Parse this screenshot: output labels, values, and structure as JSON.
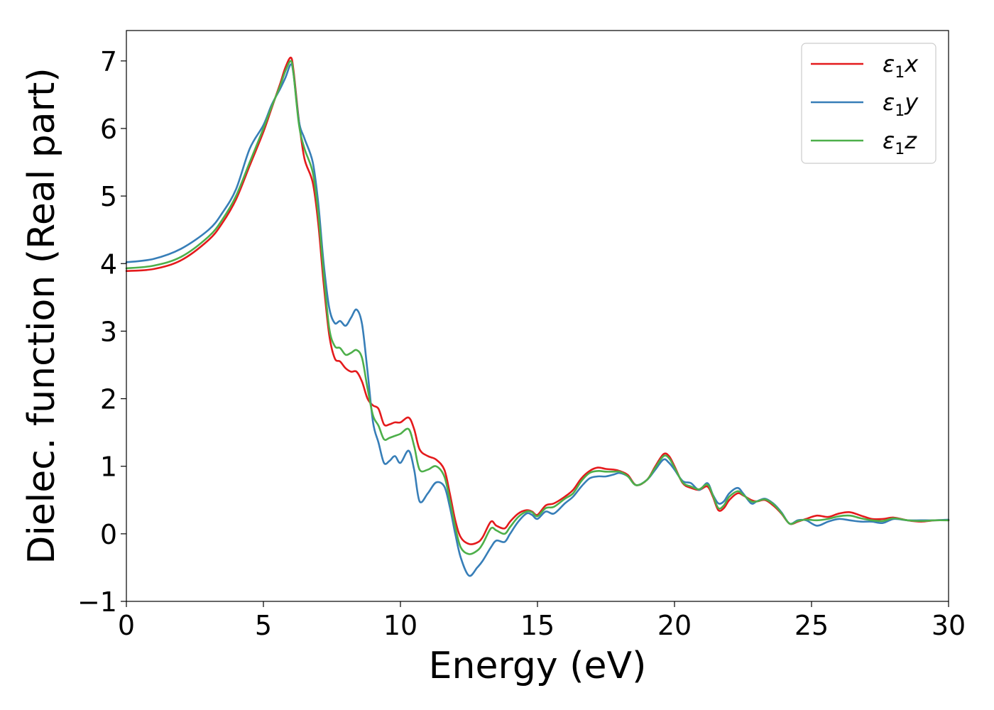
{
  "chart_data": {
    "type": "line",
    "xlabel": "Energy (eV)",
    "ylabel": "Dielec. function (Real part)",
    "xlim": [
      0,
      30
    ],
    "ylim": [
      -1,
      7.45
    ],
    "xticks": [
      0,
      5,
      10,
      15,
      20,
      25,
      30
    ],
    "yticks": [
      -1,
      0,
      1,
      2,
      3,
      4,
      5,
      6,
      7
    ],
    "xtick_labels": [
      "0",
      "5",
      "10",
      "15",
      "20",
      "25",
      "30"
    ],
    "ytick_labels": [
      "−1",
      "0",
      "1",
      "2",
      "3",
      "4",
      "5",
      "6",
      "7"
    ],
    "grid": false,
    "legend_position": "top-right",
    "series": [
      {
        "name": "ε₁x",
        "legend_main": "ε",
        "legend_sub": "1",
        "legend_tail": "x",
        "color": "#e41a1c",
        "x": [
          0,
          1,
          2,
          3,
          3.5,
          4,
          4.5,
          5,
          5.3,
          5.6,
          5.8,
          6.0,
          6.1,
          6.3,
          6.5,
          6.8,
          7.0,
          7.2,
          7.4,
          7.6,
          7.8,
          8.0,
          8.2,
          8.4,
          8.6,
          8.8,
          9.0,
          9.2,
          9.4,
          9.6,
          9.8,
          10.0,
          10.3,
          10.5,
          10.7,
          11.0,
          11.3,
          11.6,
          11.8,
          12.0,
          12.2,
          12.5,
          12.8,
          13.0,
          13.3,
          13.5,
          13.8,
          14.0,
          14.3,
          14.6,
          14.8,
          15.0,
          15.3,
          15.6,
          16.0,
          16.3,
          16.6,
          16.9,
          17.2,
          17.5,
          17.8,
          18.0,
          18.3,
          18.6,
          19.0,
          19.3,
          19.6,
          19.8,
          20.0,
          20.3,
          20.6,
          20.9,
          21.2,
          21.4,
          21.6,
          21.8,
          22.0,
          22.3,
          22.5,
          22.8,
          23.0,
          23.3,
          23.6,
          23.9,
          24.2,
          24.5,
          24.8,
          25.2,
          25.6,
          26.0,
          26.4,
          26.8,
          27.2,
          27.6,
          28.0,
          28.5,
          29.0,
          29.5,
          30.0
        ],
        "y": [
          3.89,
          3.92,
          4.05,
          4.35,
          4.6,
          4.95,
          5.45,
          5.95,
          6.3,
          6.65,
          6.9,
          7.05,
          6.85,
          6.1,
          5.55,
          5.2,
          4.6,
          3.7,
          2.95,
          2.6,
          2.55,
          2.45,
          2.4,
          2.4,
          2.25,
          2.0,
          1.9,
          1.85,
          1.62,
          1.62,
          1.65,
          1.65,
          1.72,
          1.55,
          1.25,
          1.15,
          1.1,
          0.95,
          0.6,
          0.2,
          -0.05,
          -0.15,
          -0.13,
          -0.05,
          0.18,
          0.12,
          0.08,
          0.18,
          0.3,
          0.35,
          0.33,
          0.28,
          0.42,
          0.45,
          0.55,
          0.65,
          0.82,
          0.93,
          0.98,
          0.96,
          0.95,
          0.93,
          0.87,
          0.72,
          0.8,
          1.0,
          1.18,
          1.15,
          1.0,
          0.75,
          0.68,
          0.65,
          0.7,
          0.55,
          0.35,
          0.38,
          0.5,
          0.6,
          0.57,
          0.5,
          0.48,
          0.5,
          0.42,
          0.3,
          0.15,
          0.18,
          0.22,
          0.27,
          0.25,
          0.3,
          0.32,
          0.27,
          0.22,
          0.22,
          0.24,
          0.2,
          0.18,
          0.2,
          0.2
        ]
      },
      {
        "name": "ε₁y",
        "legend_main": "ε",
        "legend_sub": "1",
        "legend_tail": "y",
        "color": "#377eb8",
        "x": [
          0,
          1,
          2,
          3,
          3.5,
          4,
          4.5,
          5,
          5.3,
          5.6,
          5.8,
          6.0,
          6.1,
          6.3,
          6.5,
          6.8,
          7.0,
          7.2,
          7.4,
          7.6,
          7.8,
          8.0,
          8.2,
          8.4,
          8.6,
          8.8,
          9.0,
          9.2,
          9.4,
          9.6,
          9.8,
          10.0,
          10.3,
          10.5,
          10.7,
          11.0,
          11.3,
          11.6,
          11.8,
          12.0,
          12.2,
          12.5,
          12.8,
          13.0,
          13.3,
          13.5,
          13.8,
          14.0,
          14.3,
          14.6,
          14.8,
          15.0,
          15.3,
          15.6,
          16.0,
          16.3,
          16.6,
          16.9,
          17.2,
          17.5,
          17.8,
          18.0,
          18.3,
          18.6,
          19.0,
          19.3,
          19.6,
          19.8,
          20.0,
          20.3,
          20.6,
          20.9,
          21.2,
          21.4,
          21.6,
          21.8,
          22.0,
          22.3,
          22.5,
          22.8,
          23.0,
          23.3,
          23.6,
          23.9,
          24.2,
          24.5,
          24.8,
          25.2,
          25.6,
          26.0,
          26.4,
          26.8,
          27.2,
          27.6,
          28.0,
          28.5,
          29.0,
          29.5,
          30.0
        ],
        "y": [
          4.02,
          4.07,
          4.22,
          4.5,
          4.75,
          5.1,
          5.7,
          6.05,
          6.35,
          6.58,
          6.75,
          6.95,
          6.8,
          6.1,
          5.85,
          5.5,
          4.9,
          4.0,
          3.35,
          3.12,
          3.15,
          3.08,
          3.2,
          3.32,
          3.1,
          2.4,
          1.65,
          1.35,
          1.05,
          1.08,
          1.15,
          1.05,
          1.23,
          0.95,
          0.48,
          0.6,
          0.76,
          0.7,
          0.4,
          0.0,
          -0.35,
          -0.62,
          -0.5,
          -0.4,
          -0.2,
          -0.1,
          -0.12,
          0.0,
          0.18,
          0.3,
          0.28,
          0.22,
          0.33,
          0.3,
          0.45,
          0.55,
          0.7,
          0.82,
          0.85,
          0.85,
          0.88,
          0.9,
          0.85,
          0.72,
          0.8,
          0.95,
          1.1,
          1.05,
          0.95,
          0.78,
          0.75,
          0.65,
          0.75,
          0.58,
          0.45,
          0.48,
          0.6,
          0.68,
          0.6,
          0.45,
          0.48,
          0.52,
          0.45,
          0.32,
          0.15,
          0.2,
          0.2,
          0.12,
          0.18,
          0.22,
          0.2,
          0.18,
          0.18,
          0.16,
          0.22,
          0.2,
          0.2,
          0.2,
          0.21
        ]
      },
      {
        "name": "ε₁z",
        "legend_main": "ε",
        "legend_sub": "1",
        "legend_tail": "z",
        "color": "#4daf4a",
        "x": [
          0,
          1,
          2,
          3,
          3.5,
          4,
          4.5,
          5,
          5.3,
          5.6,
          5.8,
          6.0,
          6.1,
          6.3,
          6.5,
          6.8,
          7.0,
          7.2,
          7.4,
          7.6,
          7.8,
          8.0,
          8.2,
          8.4,
          8.6,
          8.8,
          9.0,
          9.2,
          9.4,
          9.6,
          9.8,
          10.0,
          10.3,
          10.5,
          10.7,
          11.0,
          11.3,
          11.6,
          11.8,
          12.0,
          12.2,
          12.5,
          12.8,
          13.0,
          13.3,
          13.5,
          13.8,
          14.0,
          14.3,
          14.6,
          14.8,
          15.0,
          15.3,
          15.6,
          16.0,
          16.3,
          16.6,
          16.9,
          17.2,
          17.5,
          17.8,
          18.0,
          18.3,
          18.6,
          19.0,
          19.3,
          19.6,
          19.8,
          20.0,
          20.3,
          20.6,
          20.9,
          21.2,
          21.4,
          21.6,
          21.8,
          22.0,
          22.3,
          22.5,
          22.8,
          23.0,
          23.3,
          23.6,
          23.9,
          24.2,
          24.5,
          24.8,
          25.2,
          25.6,
          26.0,
          26.4,
          26.8,
          27.2,
          27.6,
          28.0,
          28.5,
          29.0,
          29.5,
          30.0
        ],
        "y": [
          3.93,
          3.97,
          4.1,
          4.4,
          4.65,
          5.0,
          5.5,
          6.0,
          6.32,
          6.62,
          6.85,
          7.0,
          6.8,
          6.05,
          5.7,
          5.35,
          4.75,
          3.85,
          3.05,
          2.78,
          2.75,
          2.65,
          2.68,
          2.72,
          2.6,
          2.15,
          1.75,
          1.6,
          1.4,
          1.42,
          1.45,
          1.48,
          1.55,
          1.3,
          0.95,
          0.95,
          1.0,
          0.85,
          0.5,
          0.1,
          -0.2,
          -0.3,
          -0.25,
          -0.15,
          0.08,
          0.05,
          0.0,
          0.1,
          0.25,
          0.33,
          0.32,
          0.26,
          0.38,
          0.4,
          0.52,
          0.6,
          0.78,
          0.9,
          0.93,
          0.92,
          0.92,
          0.92,
          0.85,
          0.72,
          0.8,
          0.98,
          1.15,
          1.12,
          0.98,
          0.76,
          0.7,
          0.66,
          0.73,
          0.57,
          0.38,
          0.42,
          0.55,
          0.63,
          0.58,
          0.48,
          0.48,
          0.51,
          0.44,
          0.31,
          0.15,
          0.19,
          0.21,
          0.2,
          0.22,
          0.26,
          0.27,
          0.23,
          0.2,
          0.19,
          0.23,
          0.2,
          0.19,
          0.2,
          0.2
        ]
      }
    ]
  }
}
